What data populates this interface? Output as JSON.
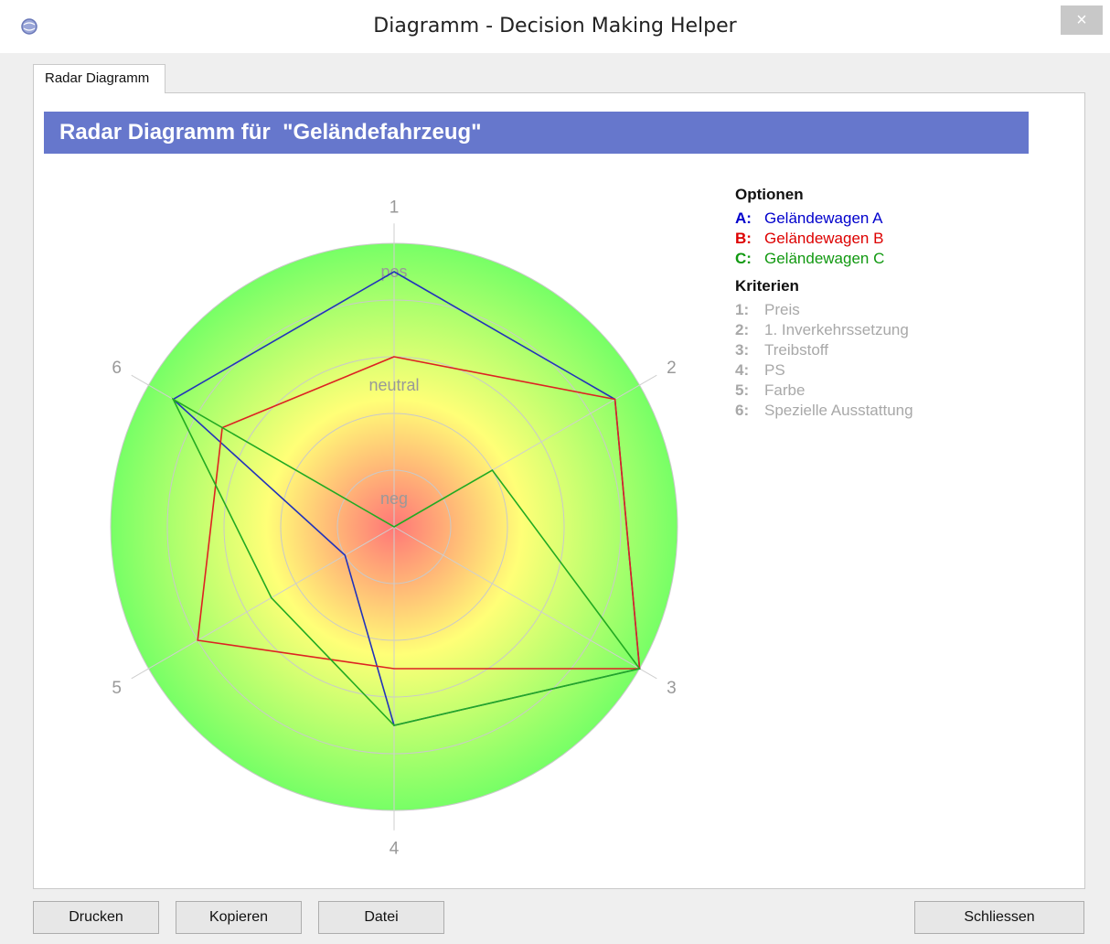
{
  "window": {
    "title": "Diagramm - Decision Making Helper",
    "close_label": "×"
  },
  "tabs": [
    {
      "label": "Radar Diagramm"
    }
  ],
  "header": {
    "title": "Radar Diagramm für  \"Geländefahrzeug\""
  },
  "legend": {
    "options_heading": "Optionen",
    "options": [
      {
        "key": "A:",
        "label": "Geländewagen A",
        "color": "#0000cc"
      },
      {
        "key": "B:",
        "label": "Geländewagen B",
        "color": "#dd0000"
      },
      {
        "key": "C:",
        "label": "Geländewagen C",
        "color": "#119911"
      }
    ],
    "criteria_heading": "Kriterien",
    "criteria": [
      {
        "key": "1:",
        "label": "Preis"
      },
      {
        "key": "2:",
        "label": "1. Inverkehrssetzung"
      },
      {
        "key": "3:",
        "label": "Treibstoff"
      },
      {
        "key": "4:",
        "label": "PS"
      },
      {
        "key": "5:",
        "label": "Farbe"
      },
      {
        "key": "6:",
        "label": "Spezielle Ausstattung"
      }
    ]
  },
  "chart_data": {
    "type": "radar",
    "axes": [
      "1",
      "2",
      "3",
      "4",
      "5",
      "6"
    ],
    "ring_labels": [
      "pos",
      "neutral",
      "neg"
    ],
    "range": [
      0,
      5
    ],
    "series": [
      {
        "name": "Geländewagen A",
        "color": "#2233bb",
        "values": [
          4.5,
          4.5,
          5,
          3.5,
          1,
          4.5
        ]
      },
      {
        "name": "Geländewagen B",
        "color": "#dd2222",
        "values": [
          3,
          4.5,
          5,
          2.5,
          4,
          3.5
        ]
      },
      {
        "name": "Geländewagen C",
        "color": "#22aa22",
        "values": [
          0,
          2,
          5,
          3.5,
          2.5,
          4.5
        ]
      }
    ],
    "gradient": [
      "#ff7777",
      "#ffff77",
      "#77ff66"
    ]
  },
  "buttons": {
    "print": "Drucken",
    "copy": "Kopieren",
    "file": "Datei",
    "close": "Schliessen"
  }
}
